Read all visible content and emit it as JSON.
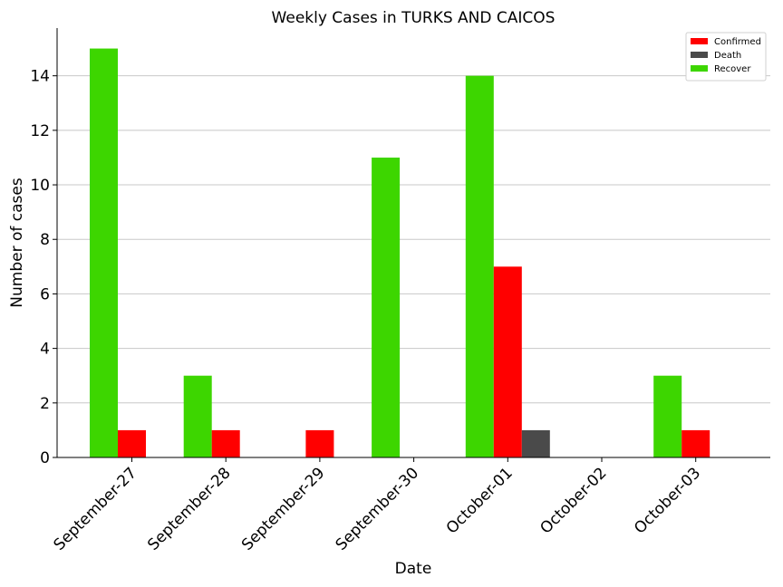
{
  "chart_data": {
    "type": "bar",
    "title": "Weekly Cases in TURKS AND CAICOS",
    "xlabel": "Date",
    "ylabel": "Number of cases",
    "categories": [
      "September-27",
      "September-28",
      "September-29",
      "September-30",
      "October-01",
      "October-02",
      "October-03"
    ],
    "series": [
      {
        "name": "Recover",
        "color": "#3dd600",
        "values": [
          15,
          3,
          0,
          11,
          14,
          0,
          3
        ]
      },
      {
        "name": "Confirmed",
        "color": "#ff0000",
        "values": [
          1,
          1,
          1,
          0,
          7,
          0,
          1
        ]
      },
      {
        "name": "Death",
        "color": "#4a4a4a",
        "values": [
          0,
          0,
          0,
          0,
          1,
          0,
          0
        ]
      }
    ],
    "legend_order": [
      "Confirmed",
      "Death",
      "Recover"
    ],
    "ylim": [
      0,
      15.75
    ],
    "yticks": [
      0,
      2,
      4,
      6,
      8,
      10,
      12,
      14
    ],
    "grid": "horizontal",
    "legend_position": "top-right"
  }
}
